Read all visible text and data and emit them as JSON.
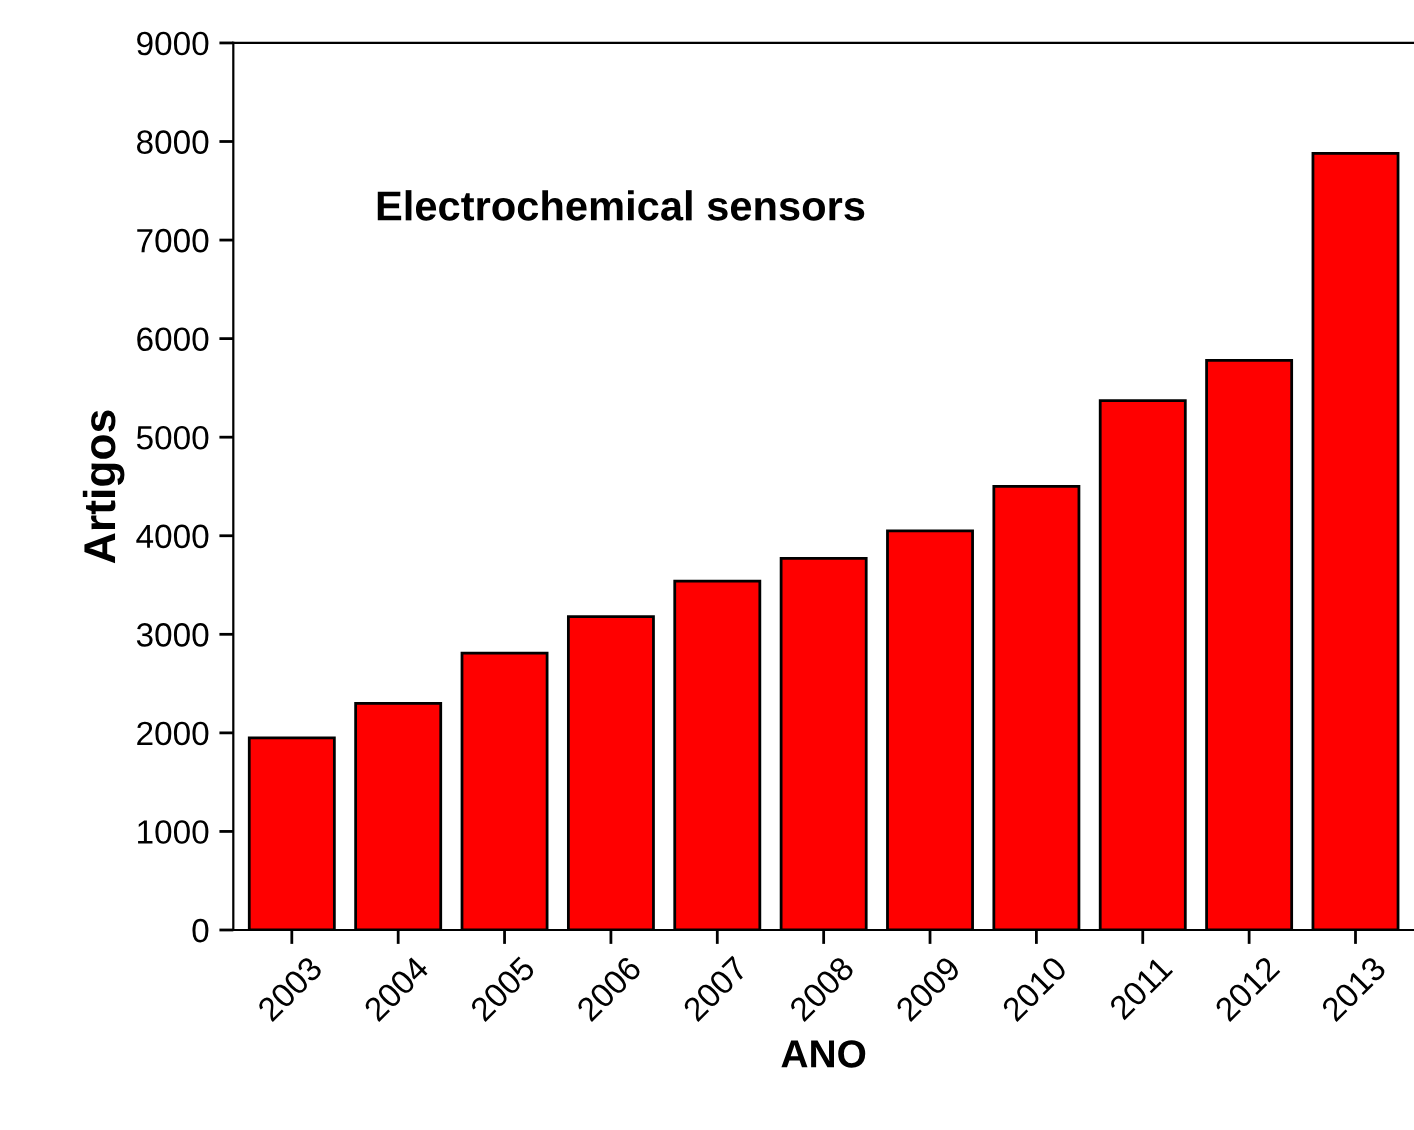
{
  "chart_data": {
    "type": "bar",
    "xlabel": "ANO",
    "ylabel": "Artigos",
    "annotations": [
      "Electrochemical sensors"
    ],
    "categories": [
      "2003",
      "2004",
      "2005",
      "2006",
      "2007",
      "2008",
      "2009",
      "2010",
      "2011",
      "2012",
      "2013"
    ],
    "values": [
      1950,
      2300,
      2810,
      3180,
      3540,
      3770,
      4050,
      4500,
      5370,
      5780,
      7880
    ],
    "color": "#ff0000",
    "ylim": [
      0,
      9000
    ],
    "yticks": [
      0,
      1000,
      2000,
      3000,
      4000,
      5000,
      6000,
      7000,
      8000,
      9000
    ],
    "grid": false
  }
}
